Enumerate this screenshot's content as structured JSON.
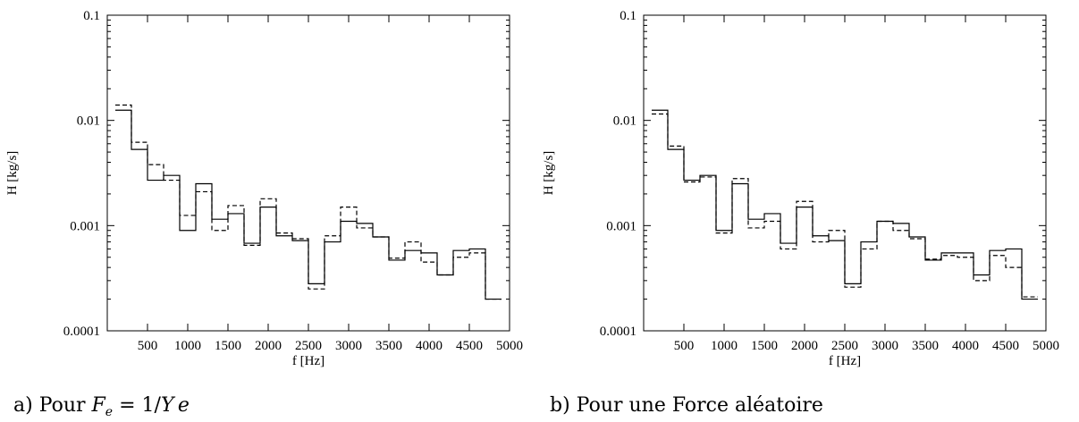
{
  "chart_data": [
    {
      "type": "line",
      "caption": "a) Pour F_e = 1/Ye",
      "xlabel": "f [Hz]",
      "ylabel": "H [kg/s]",
      "xlim": [
        0,
        5000
      ],
      "ylim": [
        0.0001,
        0.1
      ],
      "yscale": "log",
      "x_ticks": [
        "500",
        "1000",
        "1500",
        "2000",
        "2500",
        "3000",
        "3500",
        "4000",
        "4500",
        "5000"
      ],
      "y_ticks": [
        "0.0001",
        "0.001",
        "0.01",
        "0.1"
      ],
      "step_edges": [
        100,
        300,
        500,
        700,
        900,
        1100,
        1300,
        1500,
        1700,
        1900,
        2100,
        2300,
        2500,
        2700,
        2900,
        3100,
        3300,
        3500,
        3700,
        3900,
        4100,
        4300,
        4500,
        4700,
        4900
      ],
      "series": [
        {
          "style": "solid",
          "values": [
            0.0125,
            0.0053,
            0.0027,
            0.003,
            0.0009,
            0.0025,
            0.00115,
            0.0013,
            0.00068,
            0.0015,
            0.0008,
            0.00072,
            0.00028,
            0.0007,
            0.0011,
            0.00105,
            0.00078,
            0.00047,
            0.00058,
            0.00055,
            0.00034,
            0.00058,
            0.0006,
            0.0002
          ]
        },
        {
          "style": "dashed",
          "values": [
            0.014,
            0.0062,
            0.0038,
            0.0027,
            0.00125,
            0.0021,
            0.0009,
            0.00155,
            0.00065,
            0.0018,
            0.00085,
            0.00075,
            0.00025,
            0.0008,
            0.0015,
            0.00095,
            0.00078,
            0.00049,
            0.0007,
            0.00045,
            0.00034,
            0.0005,
            0.00055,
            0.0002
          ]
        }
      ]
    },
    {
      "type": "line",
      "caption": "b) Pour une Force aléatoire",
      "xlabel": "f [Hz]",
      "ylabel": "H [kg/s]",
      "xlim": [
        0,
        5000
      ],
      "ylim": [
        0.0001,
        0.1
      ],
      "yscale": "log",
      "x_ticks": [
        "500",
        "1000",
        "1500",
        "2000",
        "2500",
        "3000",
        "3500",
        "4000",
        "4500",
        "5000"
      ],
      "y_ticks": [
        "0.0001",
        "0.001",
        "0.01",
        "0.1"
      ],
      "step_edges": [
        100,
        300,
        500,
        700,
        900,
        1100,
        1300,
        1500,
        1700,
        1900,
        2100,
        2300,
        2500,
        2700,
        2900,
        3100,
        3300,
        3500,
        3700,
        3900,
        4100,
        4300,
        4500,
        4700,
        4900
      ],
      "series": [
        {
          "style": "solid",
          "values": [
            0.0125,
            0.0053,
            0.0027,
            0.003,
            0.0009,
            0.0025,
            0.00115,
            0.0013,
            0.00068,
            0.0015,
            0.0008,
            0.00072,
            0.00028,
            0.0007,
            0.0011,
            0.00105,
            0.00078,
            0.00047,
            0.00055,
            0.00055,
            0.00034,
            0.00058,
            0.0006,
            0.0002
          ]
        },
        {
          "style": "dashed",
          "values": [
            0.0115,
            0.0057,
            0.0026,
            0.0029,
            0.00085,
            0.0028,
            0.00095,
            0.0011,
            0.0006,
            0.0017,
            0.0007,
            0.0009,
            0.00026,
            0.0006,
            0.0011,
            0.0009,
            0.00075,
            0.00048,
            0.00052,
            0.0005,
            0.0003,
            0.00052,
            0.0004,
            0.00021
          ]
        }
      ]
    }
  ]
}
